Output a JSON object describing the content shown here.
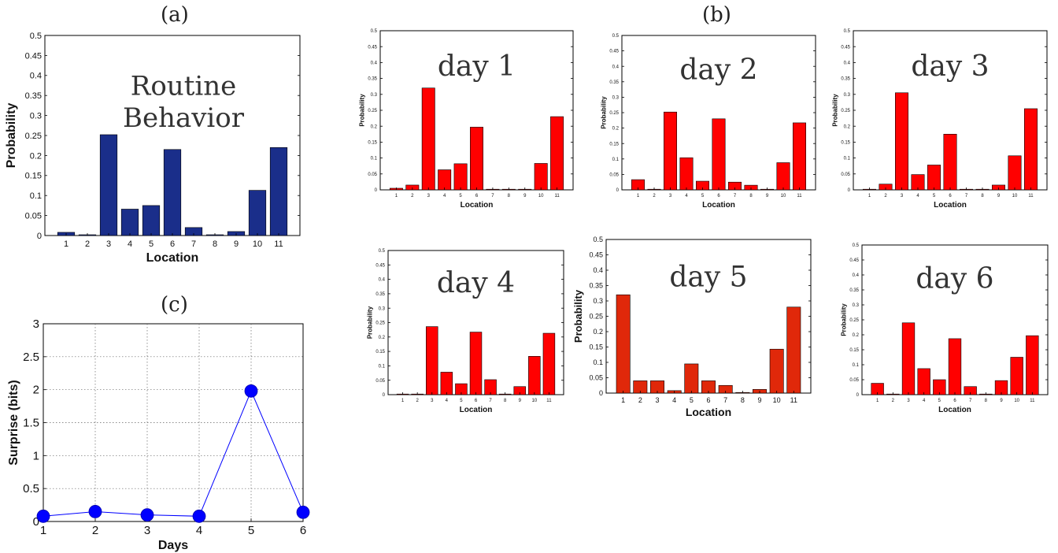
{
  "panel_labels": {
    "a": "(a)",
    "b": "(b)",
    "c": "(c)"
  },
  "colors": {
    "routine_bar": "#1a2e8a",
    "day_bar": "#ff0000",
    "day5_bar": "#e0280a",
    "surprise_line": "#0000ff"
  },
  "chart_data": [
    {
      "id": "routine",
      "type": "bar",
      "overlay_lines": [
        "Routine",
        "Behavior"
      ],
      "xlabel": "Location",
      "ylabel": "Probability",
      "categories": [
        "1",
        "2",
        "3",
        "4",
        "5",
        "6",
        "7",
        "8",
        "9",
        "10",
        "11"
      ],
      "values": [
        0.008,
        0.002,
        0.252,
        0.066,
        0.075,
        0.215,
        0.02,
        0.002,
        0.01,
        0.113,
        0.22
      ],
      "ylim": [
        0,
        0.5
      ],
      "yticks": [
        "0",
        "0.05",
        "0.1",
        "0.15",
        "0.2",
        "0.25",
        "0.3",
        "0.35",
        "0.4",
        "0.45",
        "0.5"
      ],
      "grid": false
    },
    {
      "id": "day1",
      "type": "bar",
      "overlay_lines": [
        "day 1"
      ],
      "xlabel": "Location",
      "ylabel": "Probability",
      "categories": [
        "1",
        "2",
        "3",
        "4",
        "5",
        "6",
        "7",
        "8",
        "9",
        "10",
        "11"
      ],
      "values": [
        0.005,
        0.015,
        0.32,
        0.063,
        0.082,
        0.197,
        0,
        0,
        0,
        0.083,
        0.23
      ],
      "ylim": [
        0,
        0.5
      ],
      "yticks": [
        "0",
        "0.05",
        "0.1",
        "0.15",
        "0.2",
        "0.25",
        "0.3",
        "0.35",
        "0.4",
        "0.45",
        "0.5"
      ],
      "grid": false
    },
    {
      "id": "day2",
      "type": "bar",
      "overlay_lines": [
        "day 2"
      ],
      "xlabel": "Location",
      "ylabel": "Probability",
      "categories": [
        "1",
        "2",
        "3",
        "4",
        "5",
        "6",
        "7",
        "8",
        "9",
        "10",
        "11"
      ],
      "values": [
        0.033,
        0,
        0.252,
        0.104,
        0.028,
        0.23,
        0.025,
        0.015,
        0,
        0.088,
        0.217
      ],
      "ylim": [
        0,
        0.5
      ],
      "yticks": [
        "0",
        "0.05",
        "0.1",
        "0.15",
        "0.2",
        "0.25",
        "0.3",
        "0.35",
        "0.4",
        "0.45",
        "0.5"
      ],
      "grid": false
    },
    {
      "id": "day3",
      "type": "bar",
      "overlay_lines": [
        "day 3"
      ],
      "xlabel": "Location",
      "ylabel": "Probability",
      "categories": [
        "1",
        "2",
        "3",
        "4",
        "5",
        "6",
        "7",
        "8",
        "9",
        "10",
        "11"
      ],
      "values": [
        0,
        0.018,
        0.305,
        0.048,
        0.078,
        0.175,
        0,
        0,
        0.015,
        0.107,
        0.255
      ],
      "ylim": [
        0,
        0.5
      ],
      "yticks": [
        "0",
        "0.05",
        "0.1",
        "0.15",
        "0.2",
        "0.25",
        "0.3",
        "0.35",
        "0.4",
        "0.45",
        "0.5"
      ],
      "grid": false
    },
    {
      "id": "day4",
      "type": "bar",
      "overlay_lines": [
        "day 4"
      ],
      "xlabel": "Location",
      "ylabel": "Probability",
      "categories": [
        "1",
        "2",
        "3",
        "4",
        "5",
        "6",
        "7",
        "8",
        "9",
        "10",
        "11"
      ],
      "values": [
        0,
        0,
        0.236,
        0.078,
        0.038,
        0.217,
        0.052,
        0,
        0.028,
        0.133,
        0.213
      ],
      "ylim": [
        0,
        0.5
      ],
      "yticks": [
        "0",
        "0.05",
        "0.1",
        "0.15",
        "0.2",
        "0.25",
        "0.3",
        "0.35",
        "0.4",
        "0.45",
        "0.5"
      ],
      "grid": false
    },
    {
      "id": "day5",
      "type": "bar",
      "overlay_lines": [
        "day 5"
      ],
      "xlabel": "Location",
      "ylabel": "Probability",
      "categories": [
        "1",
        "2",
        "3",
        "4",
        "5",
        "6",
        "7",
        "8",
        "9",
        "10",
        "11"
      ],
      "values": [
        0.32,
        0.04,
        0.04,
        0.008,
        0.095,
        0.04,
        0.025,
        0.002,
        0.012,
        0.143,
        0.28
      ],
      "ylim": [
        0,
        0.5
      ],
      "yticks": [
        "0",
        "0.05",
        "0.1",
        "0.15",
        "0.2",
        "0.25",
        "0.3",
        "0.35",
        "0.4",
        "0.45",
        "0.5"
      ],
      "grid": false
    },
    {
      "id": "day6",
      "type": "bar",
      "overlay_lines": [
        "day 6"
      ],
      "xlabel": "Location",
      "ylabel": "Probability",
      "categories": [
        "1",
        "2",
        "3",
        "4",
        "5",
        "6",
        "7",
        "8",
        "9",
        "10",
        "11"
      ],
      "values": [
        0.038,
        0,
        0.24,
        0.087,
        0.05,
        0.187,
        0.027,
        0,
        0.047,
        0.125,
        0.197
      ],
      "ylim": [
        0,
        0.5
      ],
      "yticks": [
        "0",
        "0.05",
        "0.1",
        "0.15",
        "0.2",
        "0.25",
        "0.3",
        "0.35",
        "0.4",
        "0.45",
        "0.5"
      ],
      "grid": false
    },
    {
      "id": "surprise",
      "type": "line",
      "xlabel": "Days",
      "ylabel": "Surprise (bits)",
      "x": [
        1,
        2,
        3,
        4,
        5,
        6
      ],
      "series": [
        {
          "values": [
            0.08,
            0.15,
            0.1,
            0.08,
            1.98,
            0.14
          ]
        }
      ],
      "xlim": [
        1,
        6
      ],
      "ylim": [
        0,
        3
      ],
      "xticks": [
        "1",
        "2",
        "3",
        "4",
        "5",
        "6"
      ],
      "yticks": [
        "0",
        "0.5",
        "1",
        "1.5",
        "2",
        "2.5",
        "3"
      ],
      "grid": true
    }
  ]
}
